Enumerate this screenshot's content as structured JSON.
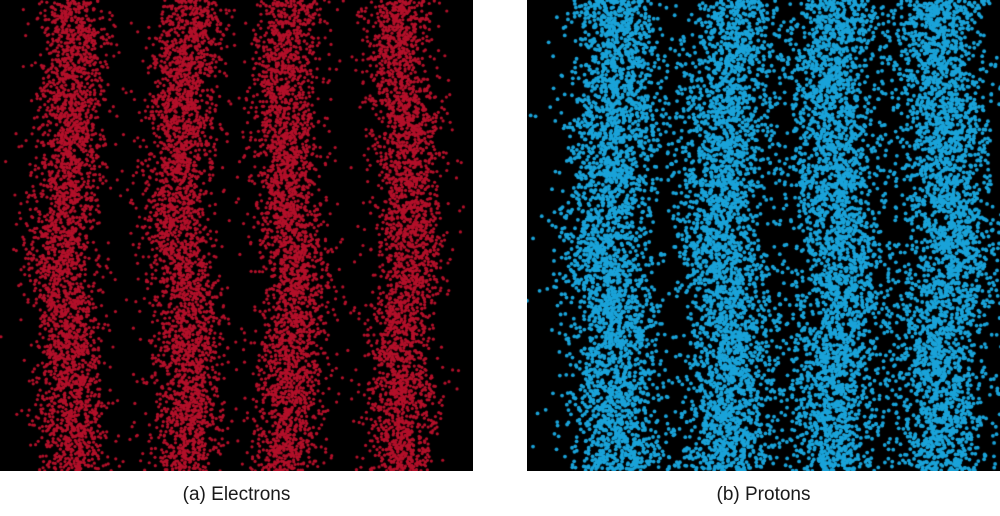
{
  "panels": [
    {
      "caption": "(a) Electrons",
      "particle": "electrons",
      "dot_color": "#b3102a",
      "background": "#000000",
      "fringe_count": 4
    },
    {
      "caption": "(b) Protons",
      "particle": "protons",
      "dot_color": "#1aa3d9",
      "background": "#000000",
      "fringe_count": 4
    }
  ]
}
